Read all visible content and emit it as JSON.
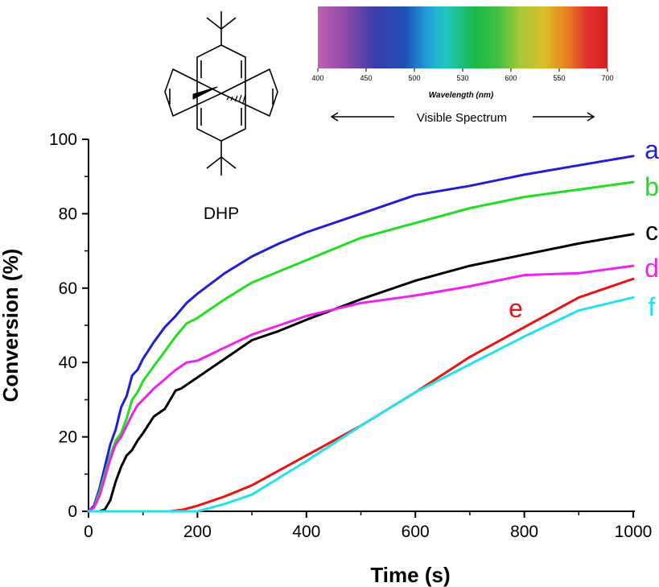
{
  "chart_data": {
    "type": "line",
    "xlabel": "Time (s)",
    "ylabel": "Conversion (%)",
    "xlim": [
      0,
      1000
    ],
    "ylim": [
      0,
      100
    ],
    "x_ticks": [
      0,
      200,
      400,
      600,
      800,
      1000
    ],
    "y_ticks": [
      0,
      20,
      40,
      60,
      80,
      100
    ],
    "grid": false,
    "series": [
      {
        "name": "a",
        "color": "#1f1fd6",
        "x": [
          0,
          10,
          20,
          30,
          40,
          50,
          60,
          70,
          80,
          90,
          100,
          120,
          140,
          160,
          180,
          200,
          250,
          300,
          350,
          400,
          500,
          600,
          700,
          800,
          900,
          1000
        ],
        "y": [
          0,
          1.5,
          6,
          12,
          18,
          22,
          28,
          31,
          36.5,
          38,
          41,
          45.5,
          49.5,
          52.5,
          56,
          58.5,
          64,
          68.5,
          72,
          75,
          80,
          85,
          87.5,
          90.5,
          93,
          95.5
        ]
      },
      {
        "name": "b",
        "color": "#22dd22",
        "x": [
          0,
          10,
          20,
          30,
          40,
          50,
          60,
          70,
          80,
          90,
          100,
          120,
          140,
          160,
          180,
          200,
          250,
          300,
          350,
          400,
          500,
          600,
          700,
          800,
          900,
          1000
        ],
        "y": [
          0,
          1,
          5,
          10,
          15,
          19,
          21,
          25,
          30,
          32,
          35,
          39,
          43,
          47,
          50.5,
          52,
          57,
          61.5,
          64.5,
          67.5,
          73.5,
          77.5,
          81.5,
          84.5,
          86.5,
          88.5
        ]
      },
      {
        "name": "c",
        "color": "#000000",
        "x": [
          0,
          10,
          20,
          30,
          40,
          50,
          60,
          70,
          80,
          90,
          100,
          120,
          140,
          150,
          160,
          170,
          200,
          250,
          300,
          350,
          400,
          500,
          600,
          700,
          800,
          900,
          1000
        ],
        "y": [
          0,
          0,
          0,
          0.5,
          3,
          8,
          12,
          15,
          16.5,
          19,
          21,
          25.5,
          27.5,
          30,
          32.5,
          33,
          36,
          41,
          46,
          48.5,
          51.5,
          57,
          62,
          66,
          69,
          72,
          74.5
        ]
      },
      {
        "name": "d",
        "color": "#ee22ee",
        "x": [
          0,
          10,
          20,
          30,
          40,
          50,
          60,
          70,
          80,
          90,
          100,
          120,
          140,
          160,
          180,
          200,
          250,
          300,
          350,
          400,
          500,
          600,
          700,
          800,
          900,
          1000
        ],
        "y": [
          0,
          1,
          4,
          9,
          14,
          18,
          20,
          23,
          26,
          28.5,
          30,
          33,
          35.5,
          38,
          40,
          40.5,
          44,
          47.5,
          50,
          52.5,
          56,
          58,
          60.5,
          63.5,
          64,
          66
        ]
      },
      {
        "name": "e",
        "color": "#ee1111",
        "x": [
          0,
          50,
          100,
          150,
          175,
          200,
          250,
          300,
          400,
          500,
          600,
          700,
          800,
          900,
          1000
        ],
        "y": [
          0,
          0,
          0,
          0,
          0.5,
          1.5,
          4,
          7,
          15,
          23,
          32,
          41.5,
          49.5,
          57.5,
          62.5
        ]
      },
      {
        "name": "f",
        "color": "#22e2ee",
        "x": [
          0,
          50,
          100,
          150,
          200,
          250,
          300,
          400,
          500,
          600,
          700,
          800,
          900,
          1000
        ],
        "y": [
          0,
          0,
          0,
          0,
          0,
          2,
          4.5,
          13.5,
          23,
          32,
          39.5,
          47,
          54,
          57.5
        ]
      }
    ]
  },
  "molecule": {
    "label": "DHP"
  },
  "spectrum": {
    "tick_labels": [
      "400",
      "450",
      "500",
      "530",
      "600",
      "550",
      "700"
    ],
    "axis_title": "Wavelength (nm)",
    "range_label": "Visible Spectrum"
  }
}
